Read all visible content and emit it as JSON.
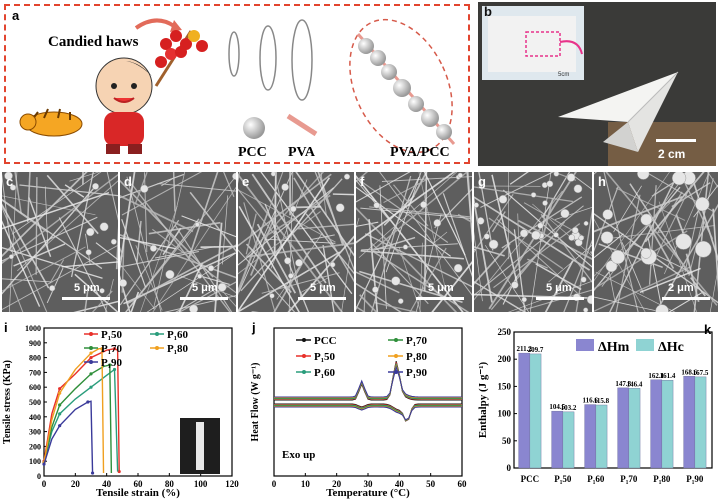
{
  "panels": {
    "a": {
      "label": "a",
      "title": "Candied haws",
      "legend": [
        "PCC",
        "PVA",
        "PVA/PCC"
      ]
    },
    "b": {
      "label": "b",
      "scalebar": "2 cm",
      "inset_note": "5cm"
    },
    "sem": [
      {
        "label": "c",
        "scalebar": "5 μm"
      },
      {
        "label": "d",
        "scalebar": "5 μm"
      },
      {
        "label": "e",
        "scalebar": "5 μm"
      },
      {
        "label": "f",
        "scalebar": "5 μm"
      },
      {
        "label": "g",
        "scalebar": "5 μm"
      },
      {
        "label": "h",
        "scalebar": "2 μm"
      }
    ]
  },
  "chart_data": [
    {
      "panel": "i",
      "type": "line",
      "xlabel": "Tensile strain (%)",
      "ylabel": "Tensile stress (KPa)",
      "xlim": [
        0,
        120
      ],
      "ylim": [
        0,
        1000
      ],
      "xticks": [
        0,
        20,
        40,
        60,
        80,
        100,
        120
      ],
      "yticks": [
        0,
        100,
        200,
        300,
        400,
        500,
        600,
        700,
        800,
        900,
        1000
      ],
      "series": [
        {
          "name": "P₁50",
          "color": "#e8312a",
          "x": [
            0,
            5,
            10,
            20,
            30,
            40,
            45,
            47,
            48
          ],
          "y": [
            100,
            420,
            590,
            690,
            800,
            850,
            860,
            850,
            30
          ]
        },
        {
          "name": "P₁60",
          "color": "#2a9d7c",
          "x": [
            0,
            5,
            10,
            20,
            30,
            40,
            45,
            47
          ],
          "y": [
            90,
            300,
            420,
            520,
            600,
            680,
            720,
            30
          ]
        },
        {
          "name": "P₁70",
          "color": "#2f8f3a",
          "x": [
            0,
            5,
            10,
            20,
            30,
            38,
            42,
            43
          ],
          "y": [
            90,
            330,
            480,
            590,
            690,
            740,
            750,
            20
          ]
        },
        {
          "name": "P₁80",
          "color": "#f0a020",
          "x": [
            0,
            5,
            10,
            20,
            30,
            35,
            37,
            38
          ],
          "y": [
            90,
            380,
            560,
            720,
            830,
            860,
            860,
            20
          ]
        },
        {
          "name": "P₁90",
          "color": "#3a3a9a",
          "x": [
            0,
            5,
            10,
            20,
            28,
            30,
            31
          ],
          "y": [
            80,
            250,
            340,
            450,
            500,
            505,
            20
          ]
        }
      ]
    },
    {
      "panel": "j",
      "type": "line",
      "xlabel": "Temperature (°C)",
      "ylabel": "Heat Flow (W g⁻¹)",
      "xlim": [
        0,
        60
      ],
      "xticks": [
        0,
        10,
        20,
        30,
        40,
        50,
        60
      ],
      "annotation": "Exo up",
      "series": [
        {
          "name": "PCC",
          "color": "#111111"
        },
        {
          "name": "P₁50",
          "color": "#e8312a"
        },
        {
          "name": "P₁60",
          "color": "#2a9d7c"
        },
        {
          "name": "P₁70",
          "color": "#2f8f3a"
        },
        {
          "name": "P₁80",
          "color": "#f0a020"
        },
        {
          "name": "P₁90",
          "color": "#3a3a9a"
        }
      ]
    },
    {
      "panel": "k",
      "type": "bar",
      "ylabel": "Enthalpy (J g⁻¹)",
      "ylim": [
        0,
        250
      ],
      "yticks": [
        0,
        50,
        100,
        150,
        200,
        250
      ],
      "categories": [
        "PCC",
        "P₁50",
        "P₁60",
        "P₁70",
        "P₁80",
        "P₁90"
      ],
      "series": [
        {
          "name": "ΔHm",
          "color": "#8a86d0",
          "values": [
            211.2,
            104.5,
            116.6,
            147.3,
            162.1,
            168.6
          ],
          "labels": [
            "211.2",
            "104.5",
            "116.6",
            "147.3",
            "162.1",
            "168.6"
          ]
        },
        {
          "name": "ΔHc",
          "color": "#8fd3d3",
          "values": [
            209.7,
            103.2,
            115.8,
            146.4,
            161.4,
            167.5
          ],
          "labels": [
            "209.7",
            "103.2",
            "115.8",
            "146.4",
            "161.4",
            "167.5"
          ]
        }
      ]
    }
  ]
}
